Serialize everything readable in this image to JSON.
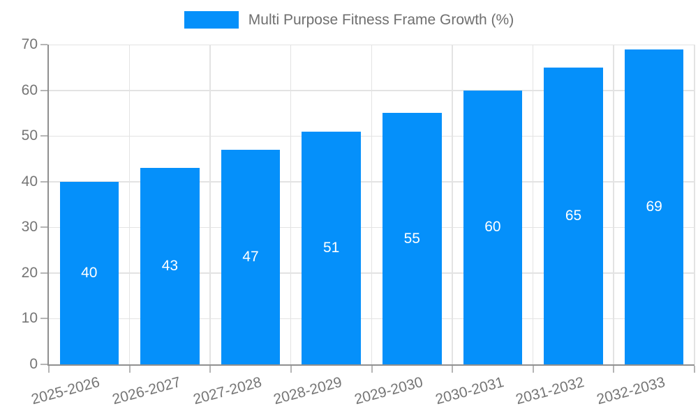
{
  "chart_data": {
    "type": "bar",
    "title": "Multi Purpose Fitness Frame Growth (%)",
    "categories": [
      "2025-2026",
      "2026-2027",
      "2027-2028",
      "2028-2029",
      "2029-2030",
      "2030-2031",
      "2031-2032",
      "2032-2033"
    ],
    "values": [
      40,
      43,
      47,
      51,
      55,
      60,
      65,
      69
    ],
    "xlabel": "",
    "ylabel": "",
    "ylim": [
      0,
      70
    ],
    "yticks": [
      0,
      10,
      20,
      30,
      40,
      50,
      60,
      70
    ],
    "grid": true,
    "bar_labels_position": "inside-center",
    "x_tick_rotation_deg": -15,
    "legend": {
      "position": "top-center",
      "entries": [
        "Multi Purpose Fitness Frame Growth (%)"
      ]
    },
    "colors": {
      "bar": "#0590FA",
      "bar_label": "#FFFFFF",
      "axis": "#8F8F8F",
      "grid": "#E3E3E3",
      "tick_text": "#757575",
      "legend_text": "#6F6F6F",
      "background": "#FFFFFF"
    }
  }
}
